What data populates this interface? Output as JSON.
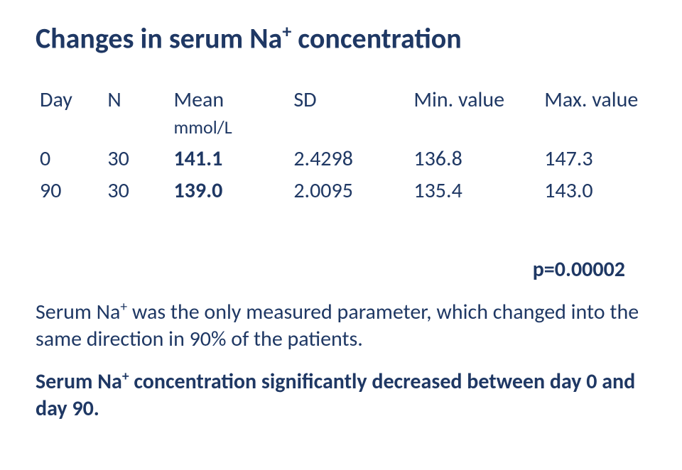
{
  "title_pre": "Changes in serum Na",
  "title_sup": "+",
  "title_post": " concentration",
  "table": {
    "headers": {
      "day": "Day",
      "n": "N",
      "mean": "Mean",
      "sd": "SD",
      "min": "Min. value",
      "max": "Max. value"
    },
    "unit": "mmol/L",
    "rows": [
      {
        "day": "0",
        "n": "30",
        "mean": "141.1",
        "sd": "2.4298",
        "min": "136.8",
        "max": "147.3"
      },
      {
        "day": "90",
        "n": "30",
        "mean": "139.0",
        "sd": "2.0095",
        "min": "135.4",
        "max": "143.0"
      }
    ]
  },
  "pvalue": "p=0.00002",
  "para1_pre": "Serum Na",
  "para1_sup": "+",
  "para1_post": " was the only measured parameter, which changed into the same direction in 90% of the patients.",
  "para2_pre": "Serum Na",
  "para2_sup": "+",
  "para2_post": " concentration significantly decreased between day 0 and day 90."
}
